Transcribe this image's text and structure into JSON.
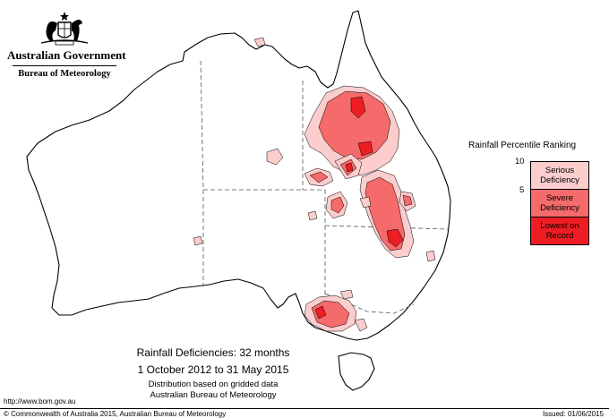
{
  "header": {
    "government": "Australian Government",
    "bureau": "Bureau of Meteorology",
    "crest_icon": "commonwealth-coat-of-arms"
  },
  "legend": {
    "title": "Rainfall Percentile Ranking",
    "ticks": [
      "10",
      "5"
    ],
    "classes": [
      {
        "label": "Serious Deficiency",
        "color": "#fbcdcd"
      },
      {
        "label": "Severe Deficiency",
        "color": "#f56a6a"
      },
      {
        "label": "Lowest on Record",
        "color": "#ee1d24"
      }
    ]
  },
  "caption": {
    "title": "Rainfall Deficiencies: 32 months",
    "dates": "1 October 2012 to 31 May 2015",
    "note1": "Distribution based on gridded data",
    "note2": "Australian Bureau of Meteorology"
  },
  "footer": {
    "url": "http://www.bom.gov.au",
    "copyright": "© Commonwealth of Australia 2015, Australian Bureau of Meteorology",
    "issued": "Issued: 01/06/2015"
  },
  "map": {
    "colors": {
      "outline": "#000000",
      "border": "#555555",
      "serious": "#fbcdcd",
      "severe": "#f56a6a",
      "lowest": "#ee1d24"
    }
  }
}
